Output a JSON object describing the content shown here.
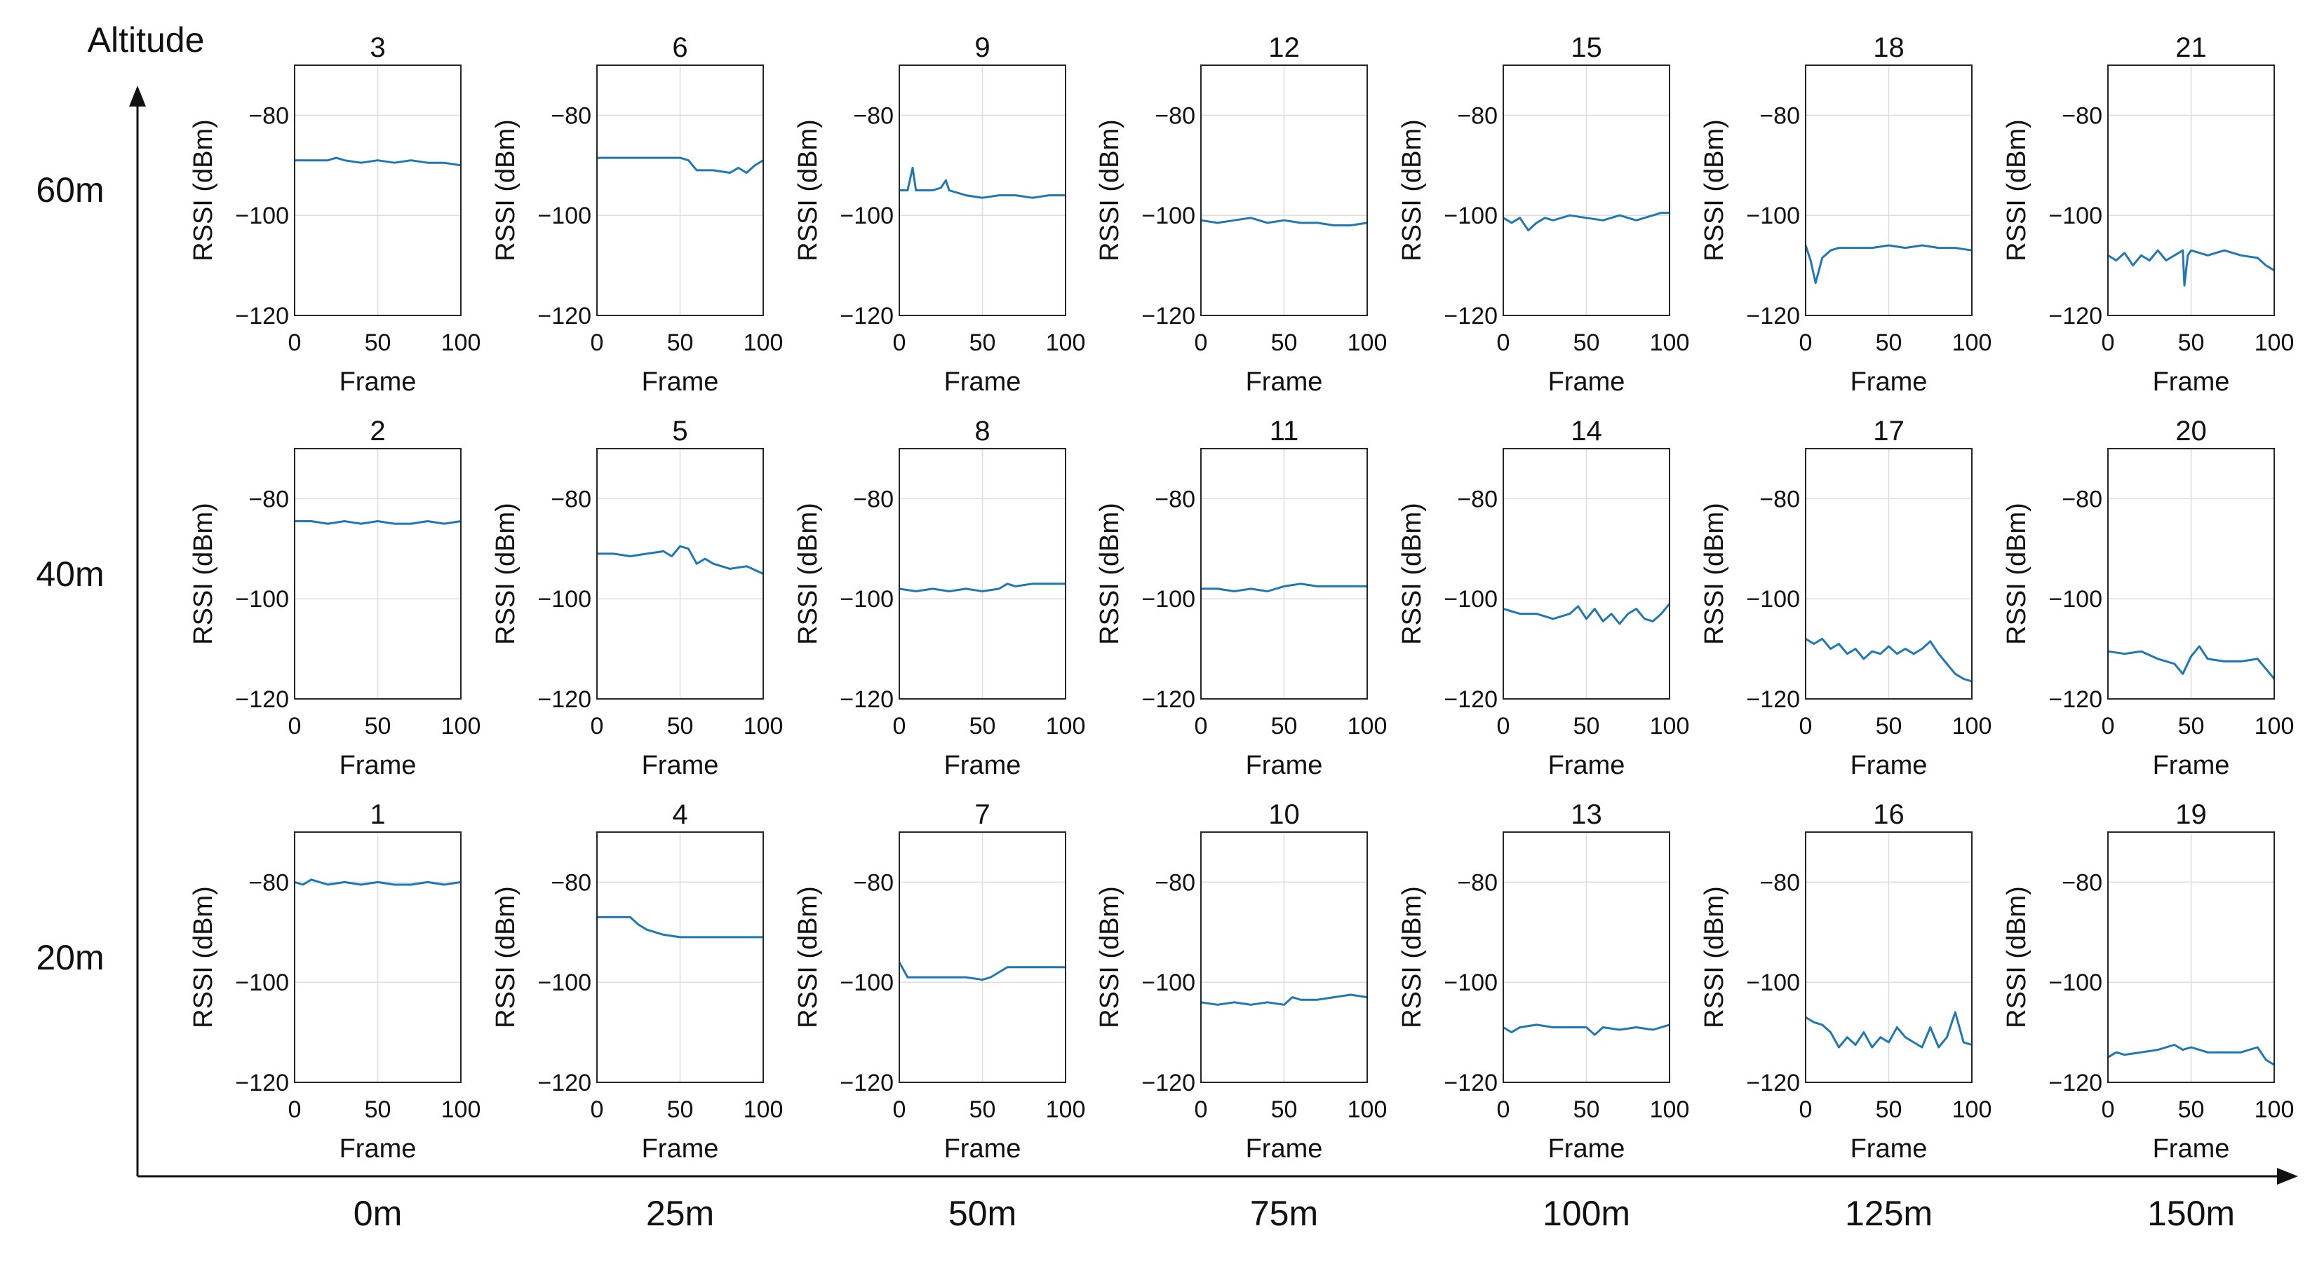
{
  "chart_data": {
    "type": "line",
    "layout": "grid 3 rows x 7 columns of small multiples",
    "outer_y_label": "Altitude",
    "outer_x_categories": [
      "0m",
      "25m",
      "50m",
      "75m",
      "100m",
      "125m",
      "150m"
    ],
    "outer_y_categories": [
      "60m",
      "40m",
      "20m"
    ],
    "panel_xlabel": "Frame",
    "panel_ylabel": "RSSI (dBm)",
    "xlim": [
      0,
      100
    ],
    "ylim": [
      -120,
      -70
    ],
    "xticks": [
      0,
      50,
      100
    ],
    "yticks": [
      -80,
      -100,
      -120
    ],
    "line_color": "#1f77b4",
    "panels": [
      {
        "title": "3",
        "row": 0,
        "col": 0,
        "x": [
          0,
          10,
          20,
          25,
          30,
          40,
          50,
          60,
          70,
          80,
          90,
          100
        ],
        "y": [
          -89,
          -89,
          -89,
          -88.5,
          -89,
          -89.5,
          -89,
          -89.5,
          -89,
          -89.5,
          -89.5,
          -90
        ]
      },
      {
        "title": "6",
        "row": 0,
        "col": 1,
        "x": [
          0,
          10,
          20,
          30,
          40,
          50,
          55,
          60,
          70,
          80,
          85,
          90,
          95,
          100
        ],
        "y": [
          -88.5,
          -88.5,
          -88.5,
          -88.5,
          -88.5,
          -88.5,
          -89,
          -91,
          -91,
          -91.5,
          -90.5,
          -91.5,
          -90,
          -89
        ]
      },
      {
        "title": "9",
        "row": 0,
        "col": 2,
        "x": [
          0,
          5,
          8,
          10,
          12,
          20,
          25,
          28,
          30,
          40,
          50,
          60,
          70,
          80,
          90,
          100
        ],
        "y": [
          -95,
          -95,
          -90.5,
          -95,
          -95,
          -95,
          -94.5,
          -93,
          -95,
          -96,
          -96.5,
          -96,
          -96,
          -96.5,
          -96,
          -96
        ]
      },
      {
        "title": "12",
        "row": 0,
        "col": 3,
        "x": [
          0,
          10,
          20,
          30,
          40,
          50,
          60,
          70,
          80,
          90,
          100
        ],
        "y": [
          -101,
          -101.5,
          -101,
          -100.5,
          -101.5,
          -101,
          -101.5,
          -101.5,
          -102,
          -102,
          -101.5
        ]
      },
      {
        "title": "15",
        "row": 0,
        "col": 4,
        "x": [
          0,
          5,
          10,
          15,
          20,
          25,
          30,
          40,
          50,
          60,
          70,
          80,
          90,
          95,
          100
        ],
        "y": [
          -100.5,
          -101.5,
          -100.5,
          -103,
          -101.5,
          -100.5,
          -101,
          -100,
          -100.5,
          -101,
          -100,
          -101,
          -100,
          -99.5,
          -99.5
        ]
      },
      {
        "title": "18",
        "row": 0,
        "col": 5,
        "x": [
          0,
          3,
          6,
          10,
          15,
          20,
          30,
          40,
          50,
          60,
          70,
          80,
          90,
          100
        ],
        "y": [
          -106,
          -109,
          -113.5,
          -108.5,
          -107,
          -106.5,
          -106.5,
          -106.5,
          -106,
          -106.5,
          -106,
          -106.5,
          -106.5,
          -107
        ]
      },
      {
        "title": "21",
        "row": 0,
        "col": 6,
        "x": [
          0,
          5,
          10,
          15,
          20,
          25,
          30,
          35,
          40,
          45,
          46,
          48,
          50,
          60,
          70,
          80,
          90,
          95,
          100
        ],
        "y": [
          -108,
          -109,
          -107.5,
          -110,
          -108,
          -109,
          -107,
          -109,
          -108,
          -107,
          -114,
          -108,
          -107,
          -108,
          -107,
          -108,
          -108.5,
          -110,
          -111
        ]
      },
      {
        "title": "2",
        "row": 1,
        "col": 0,
        "x": [
          0,
          10,
          20,
          30,
          40,
          50,
          60,
          70,
          80,
          90,
          100
        ],
        "y": [
          -84.5,
          -84.5,
          -85,
          -84.5,
          -85,
          -84.5,
          -85,
          -85,
          -84.5,
          -85,
          -84.5
        ]
      },
      {
        "title": "5",
        "row": 1,
        "col": 1,
        "x": [
          0,
          10,
          20,
          30,
          40,
          45,
          50,
          55,
          60,
          65,
          70,
          80,
          90,
          100
        ],
        "y": [
          -91,
          -91,
          -91.5,
          -91,
          -90.5,
          -91.5,
          -89.5,
          -90,
          -93,
          -92,
          -93,
          -94,
          -93.5,
          -95
        ]
      },
      {
        "title": "8",
        "row": 1,
        "col": 2,
        "x": [
          0,
          10,
          20,
          30,
          40,
          50,
          60,
          65,
          70,
          80,
          90,
          100
        ],
        "y": [
          -98,
          -98.5,
          -98,
          -98.5,
          -98,
          -98.5,
          -98,
          -97,
          -97.5,
          -97,
          -97,
          -97
        ]
      },
      {
        "title": "11",
        "row": 1,
        "col": 3,
        "x": [
          0,
          10,
          20,
          30,
          40,
          50,
          60,
          70,
          80,
          90,
          100
        ],
        "y": [
          -98,
          -98,
          -98.5,
          -98,
          -98.5,
          -97.5,
          -97,
          -97.5,
          -97.5,
          -97.5,
          -97.5
        ]
      },
      {
        "title": "14",
        "row": 1,
        "col": 4,
        "x": [
          0,
          5,
          10,
          20,
          30,
          40,
          45,
          50,
          55,
          60,
          65,
          70,
          75,
          80,
          85,
          90,
          95,
          100
        ],
        "y": [
          -102,
          -102.5,
          -103,
          -103,
          -104,
          -103,
          -101.5,
          -104,
          -102,
          -104.5,
          -103,
          -105,
          -103,
          -102,
          -104,
          -104.5,
          -103,
          -101
        ]
      },
      {
        "title": "17",
        "row": 1,
        "col": 5,
        "x": [
          0,
          5,
          10,
          15,
          20,
          25,
          30,
          35,
          40,
          45,
          50,
          55,
          60,
          65,
          70,
          75,
          80,
          85,
          90,
          95,
          100
        ],
        "y": [
          -108,
          -109,
          -108,
          -110,
          -109,
          -111,
          -110,
          -112,
          -110.5,
          -111,
          -109.5,
          -111,
          -110,
          -111,
          -110,
          -108.5,
          -111,
          -113,
          -115,
          -116,
          -116.5
        ]
      },
      {
        "title": "20",
        "row": 1,
        "col": 6,
        "x": [
          0,
          10,
          20,
          30,
          40,
          45,
          50,
          55,
          60,
          70,
          80,
          90,
          95,
          100
        ],
        "y": [
          -110.5,
          -111,
          -110.5,
          -112,
          -113,
          -115,
          -111.5,
          -109.5,
          -112,
          -112.5,
          -112.5,
          -112,
          -114,
          -116
        ]
      },
      {
        "title": "1",
        "row": 2,
        "col": 0,
        "x": [
          0,
          5,
          10,
          20,
          30,
          40,
          50,
          60,
          70,
          80,
          90,
          100
        ],
        "y": [
          -80,
          -80.5,
          -79.5,
          -80.5,
          -80,
          -80.5,
          -80,
          -80.5,
          -80.5,
          -80,
          -80.5,
          -80
        ]
      },
      {
        "title": "4",
        "row": 2,
        "col": 1,
        "x": [
          0,
          10,
          20,
          25,
          30,
          35,
          40,
          50,
          60,
          70,
          80,
          90,
          100
        ],
        "y": [
          -87,
          -87,
          -87,
          -88.5,
          -89.5,
          -90,
          -90.5,
          -91,
          -91,
          -91,
          -91,
          -91,
          -91
        ]
      },
      {
        "title": "7",
        "row": 2,
        "col": 2,
        "x": [
          0,
          5,
          10,
          20,
          30,
          40,
          50,
          55,
          60,
          65,
          70,
          80,
          90,
          100
        ],
        "y": [
          -96,
          -99,
          -99,
          -99,
          -99,
          -99,
          -99.5,
          -99,
          -98,
          -97,
          -97,
          -97,
          -97,
          -97
        ]
      },
      {
        "title": "10",
        "row": 2,
        "col": 3,
        "x": [
          0,
          10,
          20,
          30,
          40,
          50,
          55,
          60,
          70,
          80,
          90,
          100
        ],
        "y": [
          -104,
          -104.5,
          -104,
          -104.5,
          -104,
          -104.5,
          -103,
          -103.5,
          -103.5,
          -103,
          -102.5,
          -103
        ]
      },
      {
        "title": "13",
        "row": 2,
        "col": 4,
        "x": [
          0,
          5,
          10,
          20,
          30,
          40,
          50,
          55,
          60,
          70,
          80,
          90,
          100
        ],
        "y": [
          -109,
          -110,
          -109,
          -108.5,
          -109,
          -109,
          -109,
          -110.5,
          -109,
          -109.5,
          -109,
          -109.5,
          -108.5
        ]
      },
      {
        "title": "16",
        "row": 2,
        "col": 5,
        "x": [
          0,
          5,
          10,
          15,
          20,
          25,
          30,
          35,
          40,
          45,
          50,
          55,
          60,
          65,
          70,
          75,
          80,
          85,
          90,
          95,
          100
        ],
        "y": [
          -107,
          -108,
          -108.5,
          -110,
          -113,
          -111,
          -112.5,
          -110,
          -113,
          -111,
          -112,
          -109,
          -111,
          -112,
          -113,
          -109,
          -113,
          -111,
          -106,
          -112,
          -112.5
        ]
      },
      {
        "title": "19",
        "row": 2,
        "col": 6,
        "x": [
          0,
          5,
          10,
          20,
          30,
          40,
          45,
          50,
          60,
          70,
          80,
          90,
          95,
          100
        ],
        "y": [
          -115,
          -114,
          -114.5,
          -114,
          -113.5,
          -112.5,
          -113.5,
          -113,
          -114,
          -114,
          -114,
          -113,
          -115.5,
          -116.5
        ]
      }
    ]
  }
}
